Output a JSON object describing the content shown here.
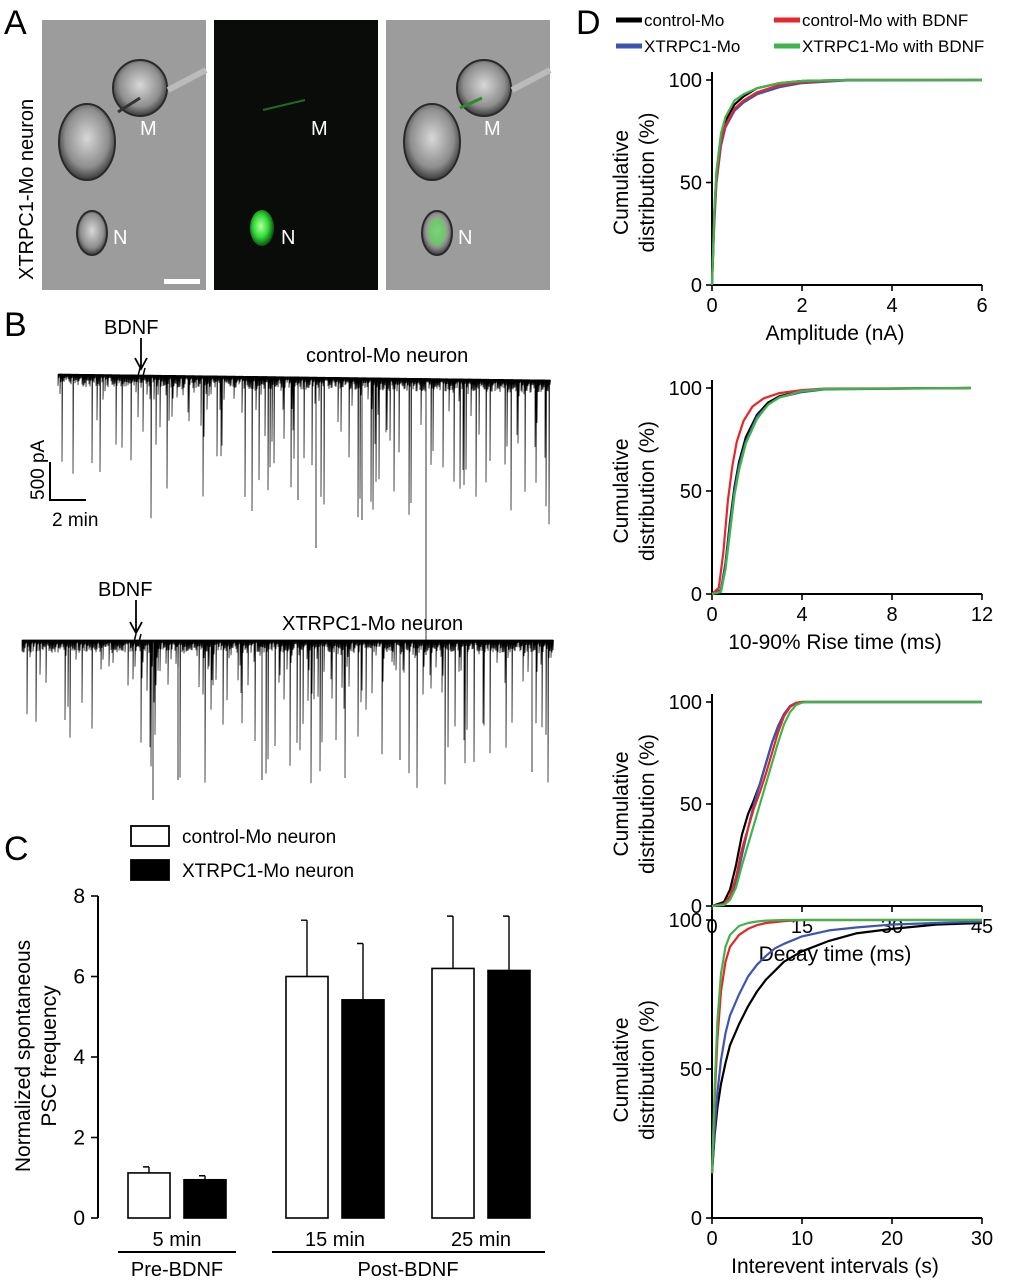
{
  "panel_labels": {
    "A": "A",
    "B": "B",
    "C": "C",
    "D": "D"
  },
  "panel_a": {
    "side_label": "XTRPC1-Mo neuron",
    "cell_labels": {
      "muscle": "M",
      "neuron": "N"
    },
    "colors": {
      "fluorescence": "#22dd33",
      "brightfield_bg": "#9a9a9a",
      "dark_bg": "#0a0c0a"
    }
  },
  "panel_b": {
    "trace1_label": "control-Mo neuron",
    "trace2_label": "XTRPC1-Mo neuron",
    "drug_label": "BDNF",
    "scalebar_y": "500 pA",
    "scalebar_x": "2 min"
  },
  "chart_data": [
    {
      "type": "bar",
      "panel": "C",
      "categories": [
        "5 min",
        "15 min",
        "25 min"
      ],
      "groups": [
        "Pre-BDNF",
        "Post-BDNF"
      ],
      "series": [
        {
          "name": "control-Mo neuron",
          "values": [
            1.12,
            6.0,
            6.2
          ],
          "errors": [
            0.15,
            1.4,
            1.3
          ],
          "color": "#ffffff"
        },
        {
          "name": "XTRPC1-Mo neuron",
          "values": [
            0.95,
            5.42,
            6.15
          ],
          "errors": [
            0.1,
            1.4,
            1.35
          ],
          "color": "#000000"
        }
      ],
      "ylabel": [
        "Normalized spontaneous",
        "PSC frequency"
      ],
      "ylim": [
        0,
        8
      ],
      "yticks": [
        "0",
        "2",
        "4",
        "6",
        "8"
      ]
    },
    {
      "type": "line",
      "panel": "D",
      "legend": [
        {
          "name": "control-Mo",
          "color": "#000000"
        },
        {
          "name": "control-Mo with BDNF",
          "color": "#e8262a"
        },
        {
          "name": "XTRPC1-Mo",
          "color": "#3d55b0"
        },
        {
          "name": "XTRPC1-Mo with BDNF",
          "color": "#3db54a"
        }
      ],
      "ylabel": [
        "Cumulative",
        "distribution (%)"
      ],
      "subplots": [
        {
          "xlabel": "Amplitude (nA)",
          "xlim": [
            0,
            6
          ],
          "xticks": [
            "0",
            "2",
            "4",
            "6"
          ],
          "ylim": [
            0,
            100
          ],
          "yticks": [
            "0",
            "50",
            "100"
          ],
          "series": [
            {
              "name": "control-Mo",
              "x": [
                0,
                0.05,
                0.1,
                0.2,
                0.3,
                0.5,
                0.7,
                1.0,
                1.5,
                2.0,
                3.0,
                6.0
              ],
              "y": [
                0,
                35,
                55,
                72,
                80,
                88,
                92,
                96,
                98.5,
                99.5,
                100,
                100
              ]
            },
            {
              "name": "control-Mo with BDNF",
              "x": [
                0,
                0.05,
                0.1,
                0.2,
                0.3,
                0.5,
                0.7,
                1.0,
                1.5,
                2.0,
                3.0,
                6.0
              ],
              "y": [
                0,
                33,
                52,
                70,
                78,
                86,
                90,
                94,
                97.5,
                99,
                100,
                100
              ]
            },
            {
              "name": "XTRPC1-Mo",
              "x": [
                0,
                0.05,
                0.1,
                0.2,
                0.3,
                0.5,
                0.7,
                1.0,
                1.5,
                2.0,
                3.0,
                6.0
              ],
              "y": [
                0,
                30,
                50,
                68,
                77,
                85,
                89,
                93,
                96.5,
                98.5,
                99.8,
                100
              ]
            },
            {
              "name": "XTRPC1-Mo with BDNF",
              "x": [
                0,
                0.05,
                0.1,
                0.2,
                0.3,
                0.5,
                0.7,
                1.0,
                1.5,
                2.0,
                3.0,
                6.0
              ],
              "y": [
                0,
                36,
                56,
                74,
                82,
                90,
                93,
                96,
                98.5,
                99.5,
                100,
                100
              ]
            }
          ]
        },
        {
          "xlabel": "10-90% Rise time (ms)",
          "xlim": [
            0,
            12
          ],
          "xticks": [
            "0",
            "4",
            "8",
            "12"
          ],
          "ylim": [
            0,
            100
          ],
          "yticks": [
            "0",
            "50",
            "100"
          ],
          "series": [
            {
              "name": "control-Mo",
              "x": [
                0,
                0.4,
                0.6,
                0.8,
                1.0,
                1.2,
                1.5,
                2.0,
                2.5,
                3.0,
                4.0,
                5.0,
                11.5
              ],
              "y": [
                0,
                2,
                15,
                35,
                52,
                64,
                76,
                87,
                93,
                96,
                98.5,
                99.5,
                100
              ]
            },
            {
              "name": "control-Mo with BDNF",
              "x": [
                0,
                0.3,
                0.5,
                0.7,
                0.9,
                1.1,
                1.4,
                1.8,
                2.3,
                3.0,
                4.0,
                5.0,
                11.5
              ],
              "y": [
                0,
                3,
                20,
                45,
                62,
                74,
                84,
                91,
                95,
                97.5,
                99,
                99.7,
                100
              ]
            },
            {
              "name": "XTRPC1-Mo",
              "x": [
                0,
                0.4,
                0.6,
                0.8,
                1.0,
                1.2,
                1.5,
                2.0,
                2.5,
                3.0,
                4.0,
                5.0,
                11.5
              ],
              "y": [
                0,
                2,
                14,
                33,
                50,
                62,
                74,
                86,
                92,
                95.5,
                98,
                99.3,
                100
              ]
            },
            {
              "name": "XTRPC1-Mo with BDNF",
              "x": [
                0,
                0.4,
                0.6,
                0.8,
                1.0,
                1.2,
                1.5,
                2.0,
                2.5,
                3.0,
                4.0,
                5.0,
                11.5
              ],
              "y": [
                0,
                1,
                12,
                30,
                48,
                60,
                73,
                85,
                92,
                95.5,
                98.5,
                99.5,
                100
              ]
            }
          ]
        },
        {
          "xlabel": "Decay time (ms)",
          "xlim": [
            0,
            45
          ],
          "xticks": [
            "0",
            "15",
            "30",
            "45"
          ],
          "ylim": [
            0,
            100
          ],
          "yticks": [
            "0",
            "50",
            "100"
          ],
          "series": [
            {
              "name": "control-Mo",
              "x": [
                0,
                2,
                3,
                4,
                5,
                6,
                7,
                8,
                9,
                10,
                11,
                12,
                13,
                14,
                15,
                45
              ],
              "y": [
                0,
                2,
                8,
                20,
                35,
                45,
                52,
                60,
                70,
                80,
                88,
                94,
                98,
                99.5,
                100,
                100
              ]
            },
            {
              "name": "control-Mo with BDNF",
              "x": [
                0,
                2,
                3,
                4,
                5,
                6,
                7,
                8,
                9,
                10,
                11,
                12,
                13,
                14,
                15,
                45
              ],
              "y": [
                0,
                1,
                5,
                14,
                28,
                38,
                48,
                56,
                65,
                75,
                85,
                93,
                97.5,
                99.5,
                100,
                100
              ]
            },
            {
              "name": "XTRPC1-Mo",
              "x": [
                0,
                2,
                3,
                4,
                5,
                6,
                7,
                8,
                9,
                10,
                11,
                12,
                13,
                14,
                15,
                45
              ],
              "y": [
                0,
                1,
                4,
                12,
                25,
                38,
                50,
                60,
                70,
                80,
                88,
                94,
                98,
                99.5,
                100,
                100
              ]
            },
            {
              "name": "XTRPC1-Mo with BDNF",
              "x": [
                0,
                2,
                3,
                4,
                5,
                6,
                7,
                8,
                9,
                10,
                11,
                12,
                13,
                14,
                15,
                16,
                45
              ],
              "y": [
                0,
                0.5,
                3,
                9,
                20,
                30,
                40,
                50,
                60,
                70,
                80,
                89,
                95,
                98.5,
                99.7,
                100,
                100
              ]
            }
          ]
        },
        {
          "xlabel": "Interevent intervals (s)",
          "xlim": [
            0,
            30
          ],
          "xticks": [
            "0",
            "10",
            "20",
            "30"
          ],
          "ylim": [
            0,
            100
          ],
          "yticks": [
            "0",
            "50",
            "100"
          ],
          "series": [
            {
              "name": "control-Mo",
              "x": [
                0,
                0.3,
                0.6,
                1,
                1.5,
                2,
                3,
                4,
                5,
                6,
                7,
                8,
                10,
                13,
                16,
                20,
                25,
                30
              ],
              "y": [
                15,
                28,
                37,
                45,
                52,
                58,
                65,
                71,
                76,
                80,
                83,
                86,
                89.5,
                93,
                95.5,
                97,
                98.5,
                99
              ]
            },
            {
              "name": "control-Mo with BDNF",
              "x": [
                0,
                0.3,
                0.6,
                1,
                1.5,
                2,
                3,
                4,
                5,
                6,
                8,
                10,
                15,
                30
              ],
              "y": [
                15,
                40,
                60,
                76,
                86,
                91,
                95,
                97,
                98.3,
                99,
                99.6,
                100,
                100,
                100
              ]
            },
            {
              "name": "XTRPC1-Mo",
              "x": [
                0,
                0.3,
                0.6,
                1,
                1.5,
                2,
                3,
                4,
                5,
                6,
                7,
                8,
                10,
                13,
                16,
                20,
                25,
                30
              ],
              "y": [
                15,
                30,
                42,
                53,
                62,
                68,
                75,
                81,
                85,
                88,
                90.5,
                92,
                94.5,
                96.5,
                97.5,
                98.5,
                99,
                99.5
              ]
            },
            {
              "name": "XTRPC1-Mo with BDNF",
              "x": [
                0,
                0.3,
                0.6,
                1,
                1.5,
                2,
                3,
                4,
                5,
                6,
                8,
                10,
                15,
                30
              ],
              "y": [
                15,
                44,
                66,
                82,
                91,
                95,
                98,
                99,
                99.5,
                99.8,
                100,
                100,
                100,
                100
              ]
            }
          ]
        }
      ]
    }
  ]
}
